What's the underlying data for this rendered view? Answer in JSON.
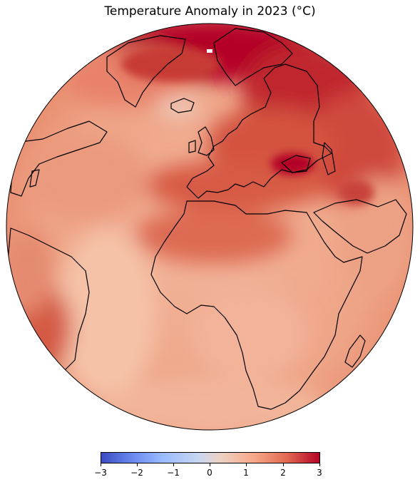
{
  "title": "Temperature Anomaly in 2023 (°C)",
  "map": {
    "projection": "orthographic",
    "center": "Europe / Africa / Atlantic",
    "variable": "temperature anomaly",
    "year": "2023",
    "coastline_color": "#000000",
    "field_note_regions": {
      "arctic_scandinavia_russia": 3.0,
      "black_sea_caspian": 2.8,
      "europe": 2.2,
      "mediterranean_north_africa": 1.9,
      "sahara": 1.3,
      "central_africa": 1.1,
      "southern_africa": 1.0,
      "north_atlantic": 1.6,
      "south_atlantic": 0.9,
      "south_america_coast": 1.9,
      "iceland": 0.4
    }
  },
  "colorbar": {
    "colormap": "coolwarm",
    "min": -3,
    "max": 3,
    "ticks": [
      "−3",
      "−2",
      "−1",
      "0",
      "1",
      "2",
      "3"
    ],
    "colors": [
      "#3b4cc0",
      "#6788ee",
      "#9abbff",
      "#c9d7f0",
      "#edd1c2",
      "#f7a889",
      "#e26952",
      "#b40426"
    ]
  }
}
